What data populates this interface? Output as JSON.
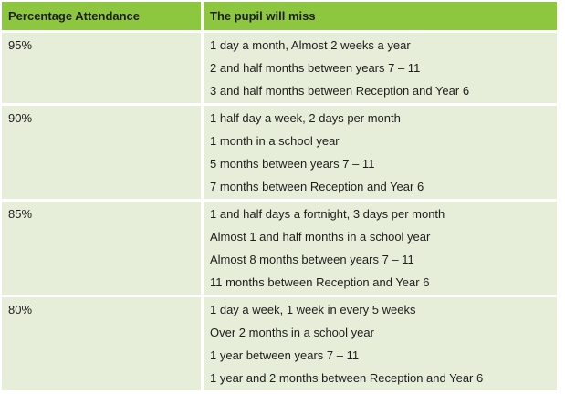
{
  "page": {
    "background": "#FFFFFF"
  },
  "colors": {
    "header_bg": "#8DC63F",
    "row_bg": "#E6EEDA",
    "header_text": "#1D1D1B",
    "body_text": "#1D1D1B",
    "gap": "#FFFFFF"
  },
  "table": {
    "header": {
      "attendance": "Percentage Attendance",
      "misses": "The pupil will miss"
    },
    "rows": [
      {
        "attendance": "95%",
        "misses": [
          "1 day a month, Almost 2 weeks a year",
          "2 and half months between years 7 – 11",
          "3 and half months between Reception and Year 6"
        ]
      },
      {
        "attendance": "90%",
        "misses": [
          "1 half day a week, 2 days per month",
          "1 month in a school year",
          "5 months between years 7 – 11",
          "7 months between Reception and Year 6"
        ]
      },
      {
        "attendance": "85%",
        "misses": [
          "1 and half days a fortnight, 3 days per month",
          "Almost 1 and half months in a school year",
          "Almost 8 months between years 7 – 11",
          "11 months between Reception and Year 6"
        ]
      },
      {
        "attendance": "80%",
        "misses": [
          "1 day a week, 1 week in every 5 weeks",
          "Over 2 months in a school year",
          "1 year between years 7 – 11",
          "1 year and 2 months between Reception and Year 6"
        ]
      }
    ]
  },
  "chart_data": {
    "type": "table",
    "columns": [
      "Percentage Attendance",
      "The pupil will miss"
    ],
    "rows": [
      [
        "95%",
        [
          "1 day a month, Almost 2 weeks a year",
          "2 and half months between years 7 – 11",
          "3 and half months between Reception and Year 6"
        ]
      ],
      [
        "90%",
        [
          "1 half day a week, 2 days per month",
          "1 month in a school year",
          "5 months between years 7 – 11",
          "7 months between Reception and Year 6"
        ]
      ],
      [
        "85%",
        [
          "1 and half days a fortnight, 3 days per month",
          "Almost 1 and half months in a school year",
          "Almost 8 months between years 7 – 11",
          "11 months between Reception and Year 6"
        ]
      ],
      [
        "80%",
        [
          "1 day a week, 1 week in every 5 weeks",
          "Over 2 months in a school year",
          "1 year between years 7 – 11",
          "1 year and 2 months between Reception and Year 6"
        ]
      ]
    ]
  }
}
